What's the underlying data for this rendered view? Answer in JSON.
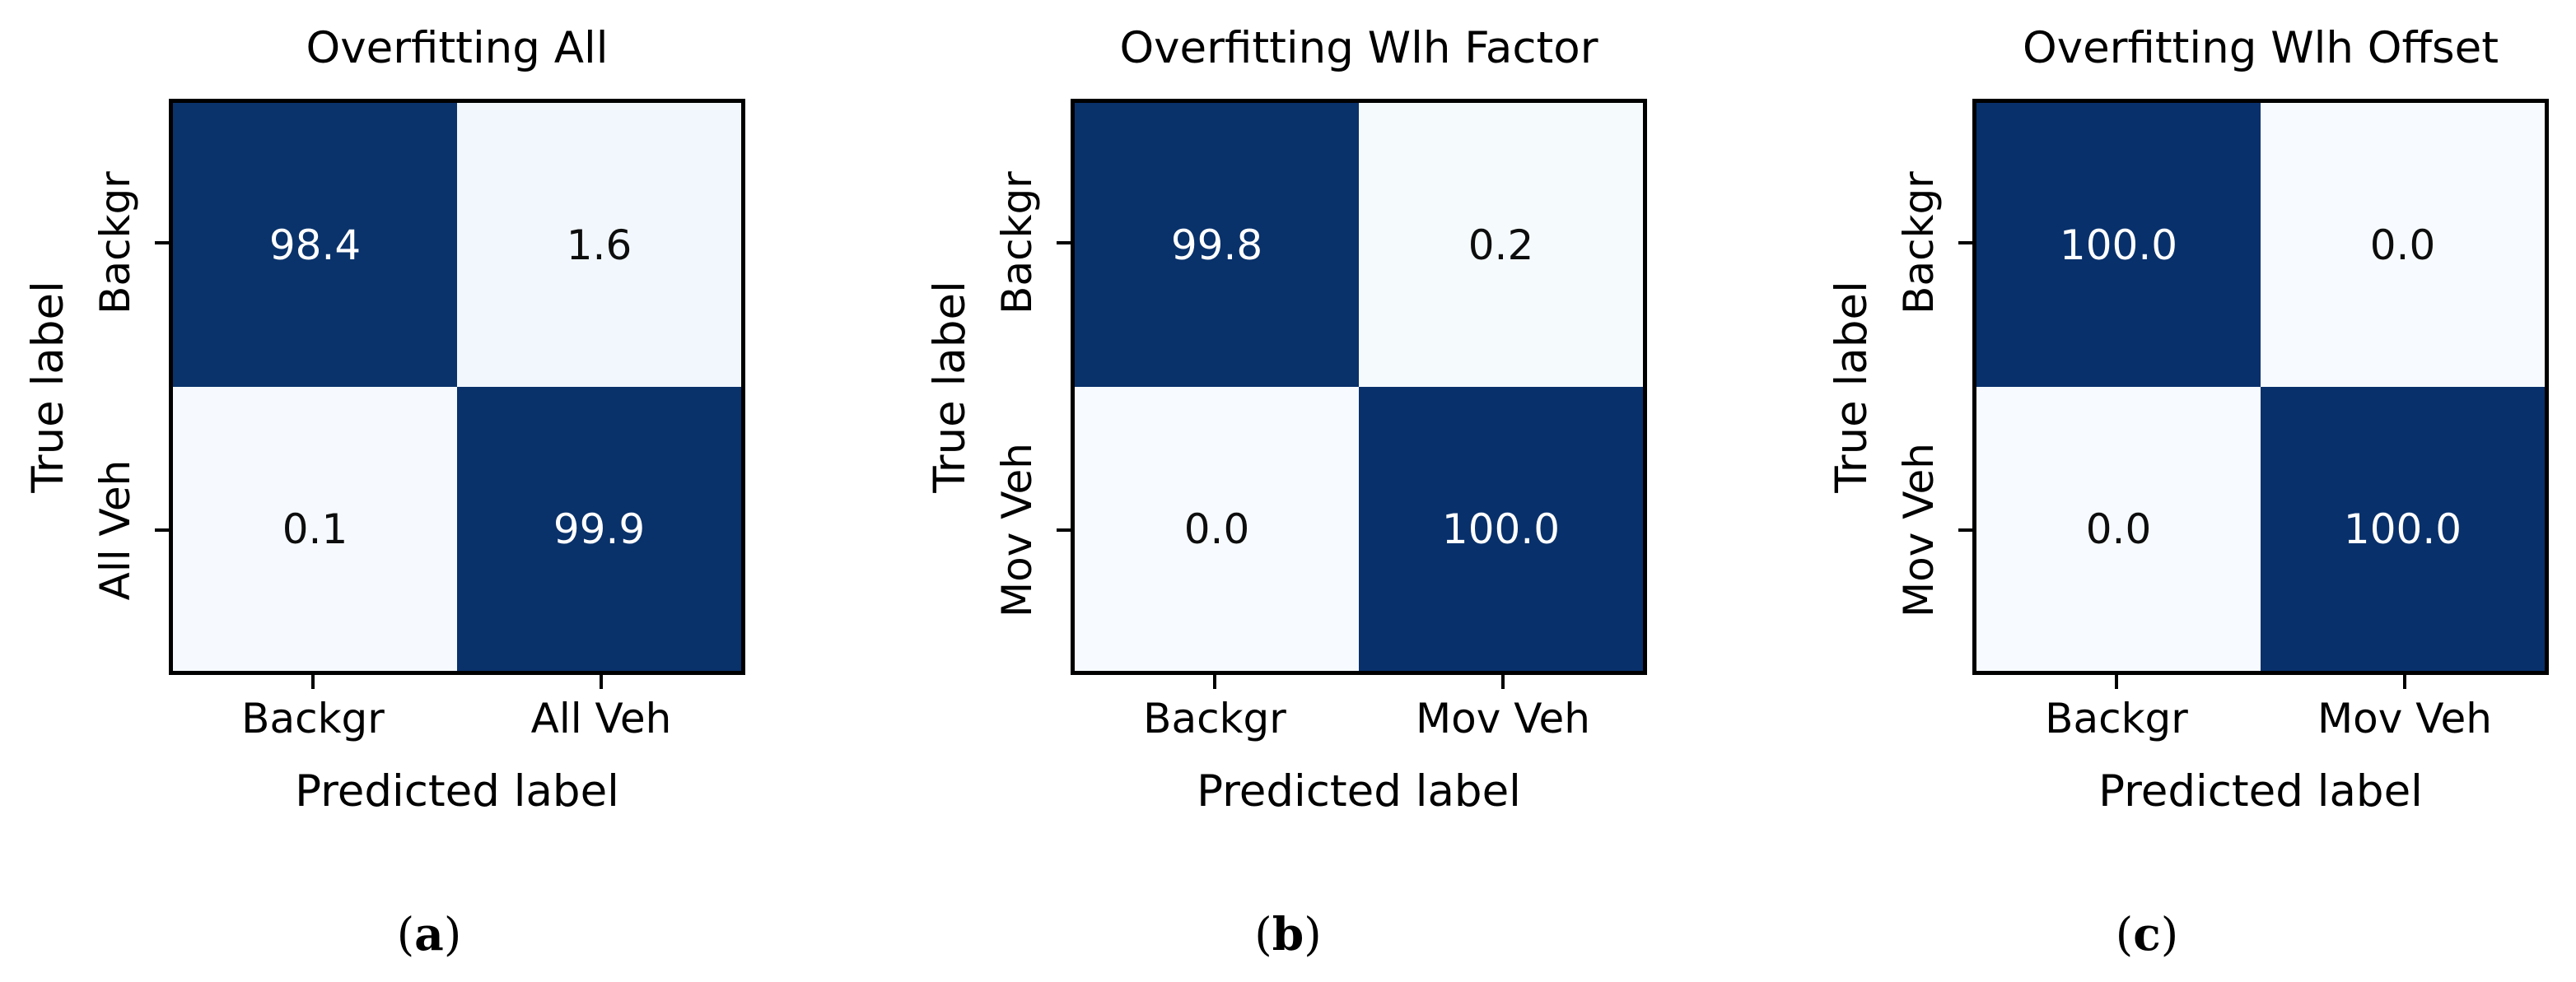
{
  "figure": {
    "background": "#ffffff",
    "description": "Three binary confusion matrices (row-normalized percentages)"
  },
  "colors": {
    "colormap": "Blues",
    "colormap_max": "#08306b",
    "colormap_min": "#f7fbff",
    "border": "#000000",
    "text": "#000000"
  },
  "panels": [
    {
      "id": "a",
      "title": "Overfitting All",
      "y_axis_label": "True label",
      "x_axis_label": "Predicted label",
      "y_tick_labels": [
        "Backgr",
        "All Veh"
      ],
      "x_tick_labels": [
        "Backgr",
        "All Veh"
      ],
      "cells": [
        {
          "text": "98.4",
          "bg": "#0a336b",
          "fg": "#ffffff"
        },
        {
          "text": "1.6",
          "bg": "#f1f7fd",
          "fg": "#0d0d0d"
        },
        {
          "text": "0.1",
          "bg": "#f6fafe",
          "fg": "#0d0d0d"
        },
        {
          "text": "99.9",
          "bg": "#09316a",
          "fg": "#ffffff"
        }
      ],
      "caption": {
        "open": "(",
        "letter": "a",
        "close": ")"
      }
    },
    {
      "id": "b",
      "title": "Overfitting Wlh Factor",
      "y_axis_label": "True label",
      "x_axis_label": "Predicted label",
      "y_tick_labels": [
        "Backgr",
        "Mov Veh"
      ],
      "x_tick_labels": [
        "Backgr",
        "Mov Veh"
      ],
      "cells": [
        {
          "text": "99.8",
          "bg": "#09316a",
          "fg": "#ffffff"
        },
        {
          "text": "0.2",
          "bg": "#f5fafd",
          "fg": "#0d0d0d"
        },
        {
          "text": "0.0",
          "bg": "#f7fbff",
          "fg": "#0d0d0d"
        },
        {
          "text": "100.0",
          "bg": "#08306b",
          "fg": "#ffffff"
        }
      ],
      "caption": {
        "open": "(",
        "letter": "b",
        "close": ")"
      }
    },
    {
      "id": "c",
      "title": "Overfitting Wlh Offset",
      "y_axis_label": "True label",
      "x_axis_label": "Predicted label",
      "y_tick_labels": [
        "Backgr",
        "Mov Veh"
      ],
      "x_tick_labels": [
        "Backgr",
        "Mov Veh"
      ],
      "cells": [
        {
          "text": "100.0",
          "bg": "#08306b",
          "fg": "#ffffff"
        },
        {
          "text": "0.0",
          "bg": "#f7fbff",
          "fg": "#0d0d0d"
        },
        {
          "text": "0.0",
          "bg": "#f7fbff",
          "fg": "#0d0d0d"
        },
        {
          "text": "100.0",
          "bg": "#08306b",
          "fg": "#ffffff"
        }
      ],
      "caption": {
        "open": "(",
        "letter": "c",
        "close": ")"
      }
    }
  ],
  "chart_data": [
    {
      "type": "heatmap",
      "title": "Overfitting All",
      "x": [
        "Backgr",
        "All Veh"
      ],
      "y": [
        "Backgr",
        "All Veh"
      ],
      "values": [
        [
          98.4,
          1.6
        ],
        [
          0.1,
          99.9
        ]
      ],
      "xlabel": "Predicted label",
      "ylabel": "True label",
      "colormap": "Blues",
      "value_range": [
        0,
        100
      ],
      "grid": false,
      "legend": "none"
    },
    {
      "type": "heatmap",
      "title": "Overfitting Wlh Factor",
      "x": [
        "Backgr",
        "Mov Veh"
      ],
      "y": [
        "Backgr",
        "Mov Veh"
      ],
      "values": [
        [
          99.8,
          0.2
        ],
        [
          0.0,
          100.0
        ]
      ],
      "xlabel": "Predicted label",
      "ylabel": "True label",
      "colormap": "Blues",
      "value_range": [
        0,
        100
      ],
      "grid": false,
      "legend": "none"
    },
    {
      "type": "heatmap",
      "title": "Overfitting Wlh Offset",
      "x": [
        "Backgr",
        "Mov Veh"
      ],
      "y": [
        "Backgr",
        "Mov Veh"
      ],
      "values": [
        [
          100.0,
          0.0
        ],
        [
          0.0,
          100.0
        ]
      ],
      "xlabel": "Predicted label",
      "ylabel": "True label",
      "colormap": "Blues",
      "value_range": [
        0,
        100
      ],
      "grid": false,
      "legend": "none"
    }
  ]
}
